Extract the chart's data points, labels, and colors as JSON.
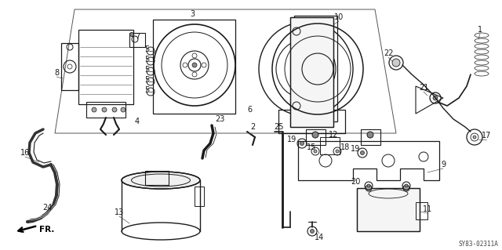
{
  "title": "",
  "bg_color": "#ffffff",
  "line_color": "#1a1a1a",
  "diagram_code": "SY83-02311A",
  "fig_width": 6.4,
  "fig_height": 3.19,
  "dpi": 100
}
